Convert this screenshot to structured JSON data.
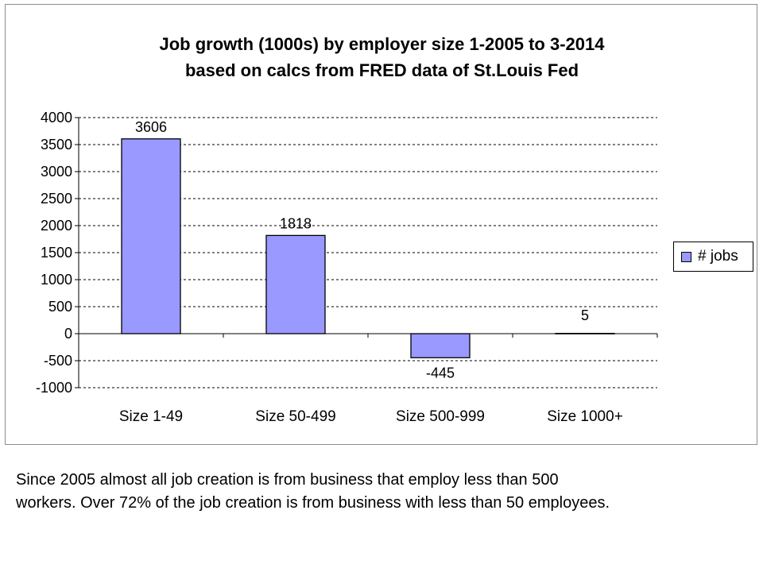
{
  "chart_data": {
    "type": "bar",
    "title_line1": "Job growth (1000s) by employer size 1-2005 to 3-2014",
    "title_line2": "based on calcs from FRED data of St.Louis Fed",
    "categories": [
      "Size 1-49",
      "Size 50-499",
      "Size 500-999",
      "Size 1000+"
    ],
    "series": [
      {
        "name": "# jobs",
        "values": [
          3606,
          1818,
          -445,
          5
        ]
      }
    ],
    "data_labels": [
      "3606",
      "1818",
      "-445",
      "5"
    ],
    "yticks": [
      "4000",
      "3500",
      "3000",
      "2500",
      "2000",
      "1500",
      "1000",
      "500",
      "0",
      "-500",
      "-1000"
    ],
    "ylim": [
      -1000,
      4000
    ],
    "grid": "horizontal dashed",
    "legend_position": "right",
    "bar_color": "#9999ff"
  },
  "caption": {
    "line1": "Since 2005 almost all job creation is from business that employ less than 500",
    "line2": "workers.  Over 72% of the job creation is from business with less than 50 employees."
  }
}
